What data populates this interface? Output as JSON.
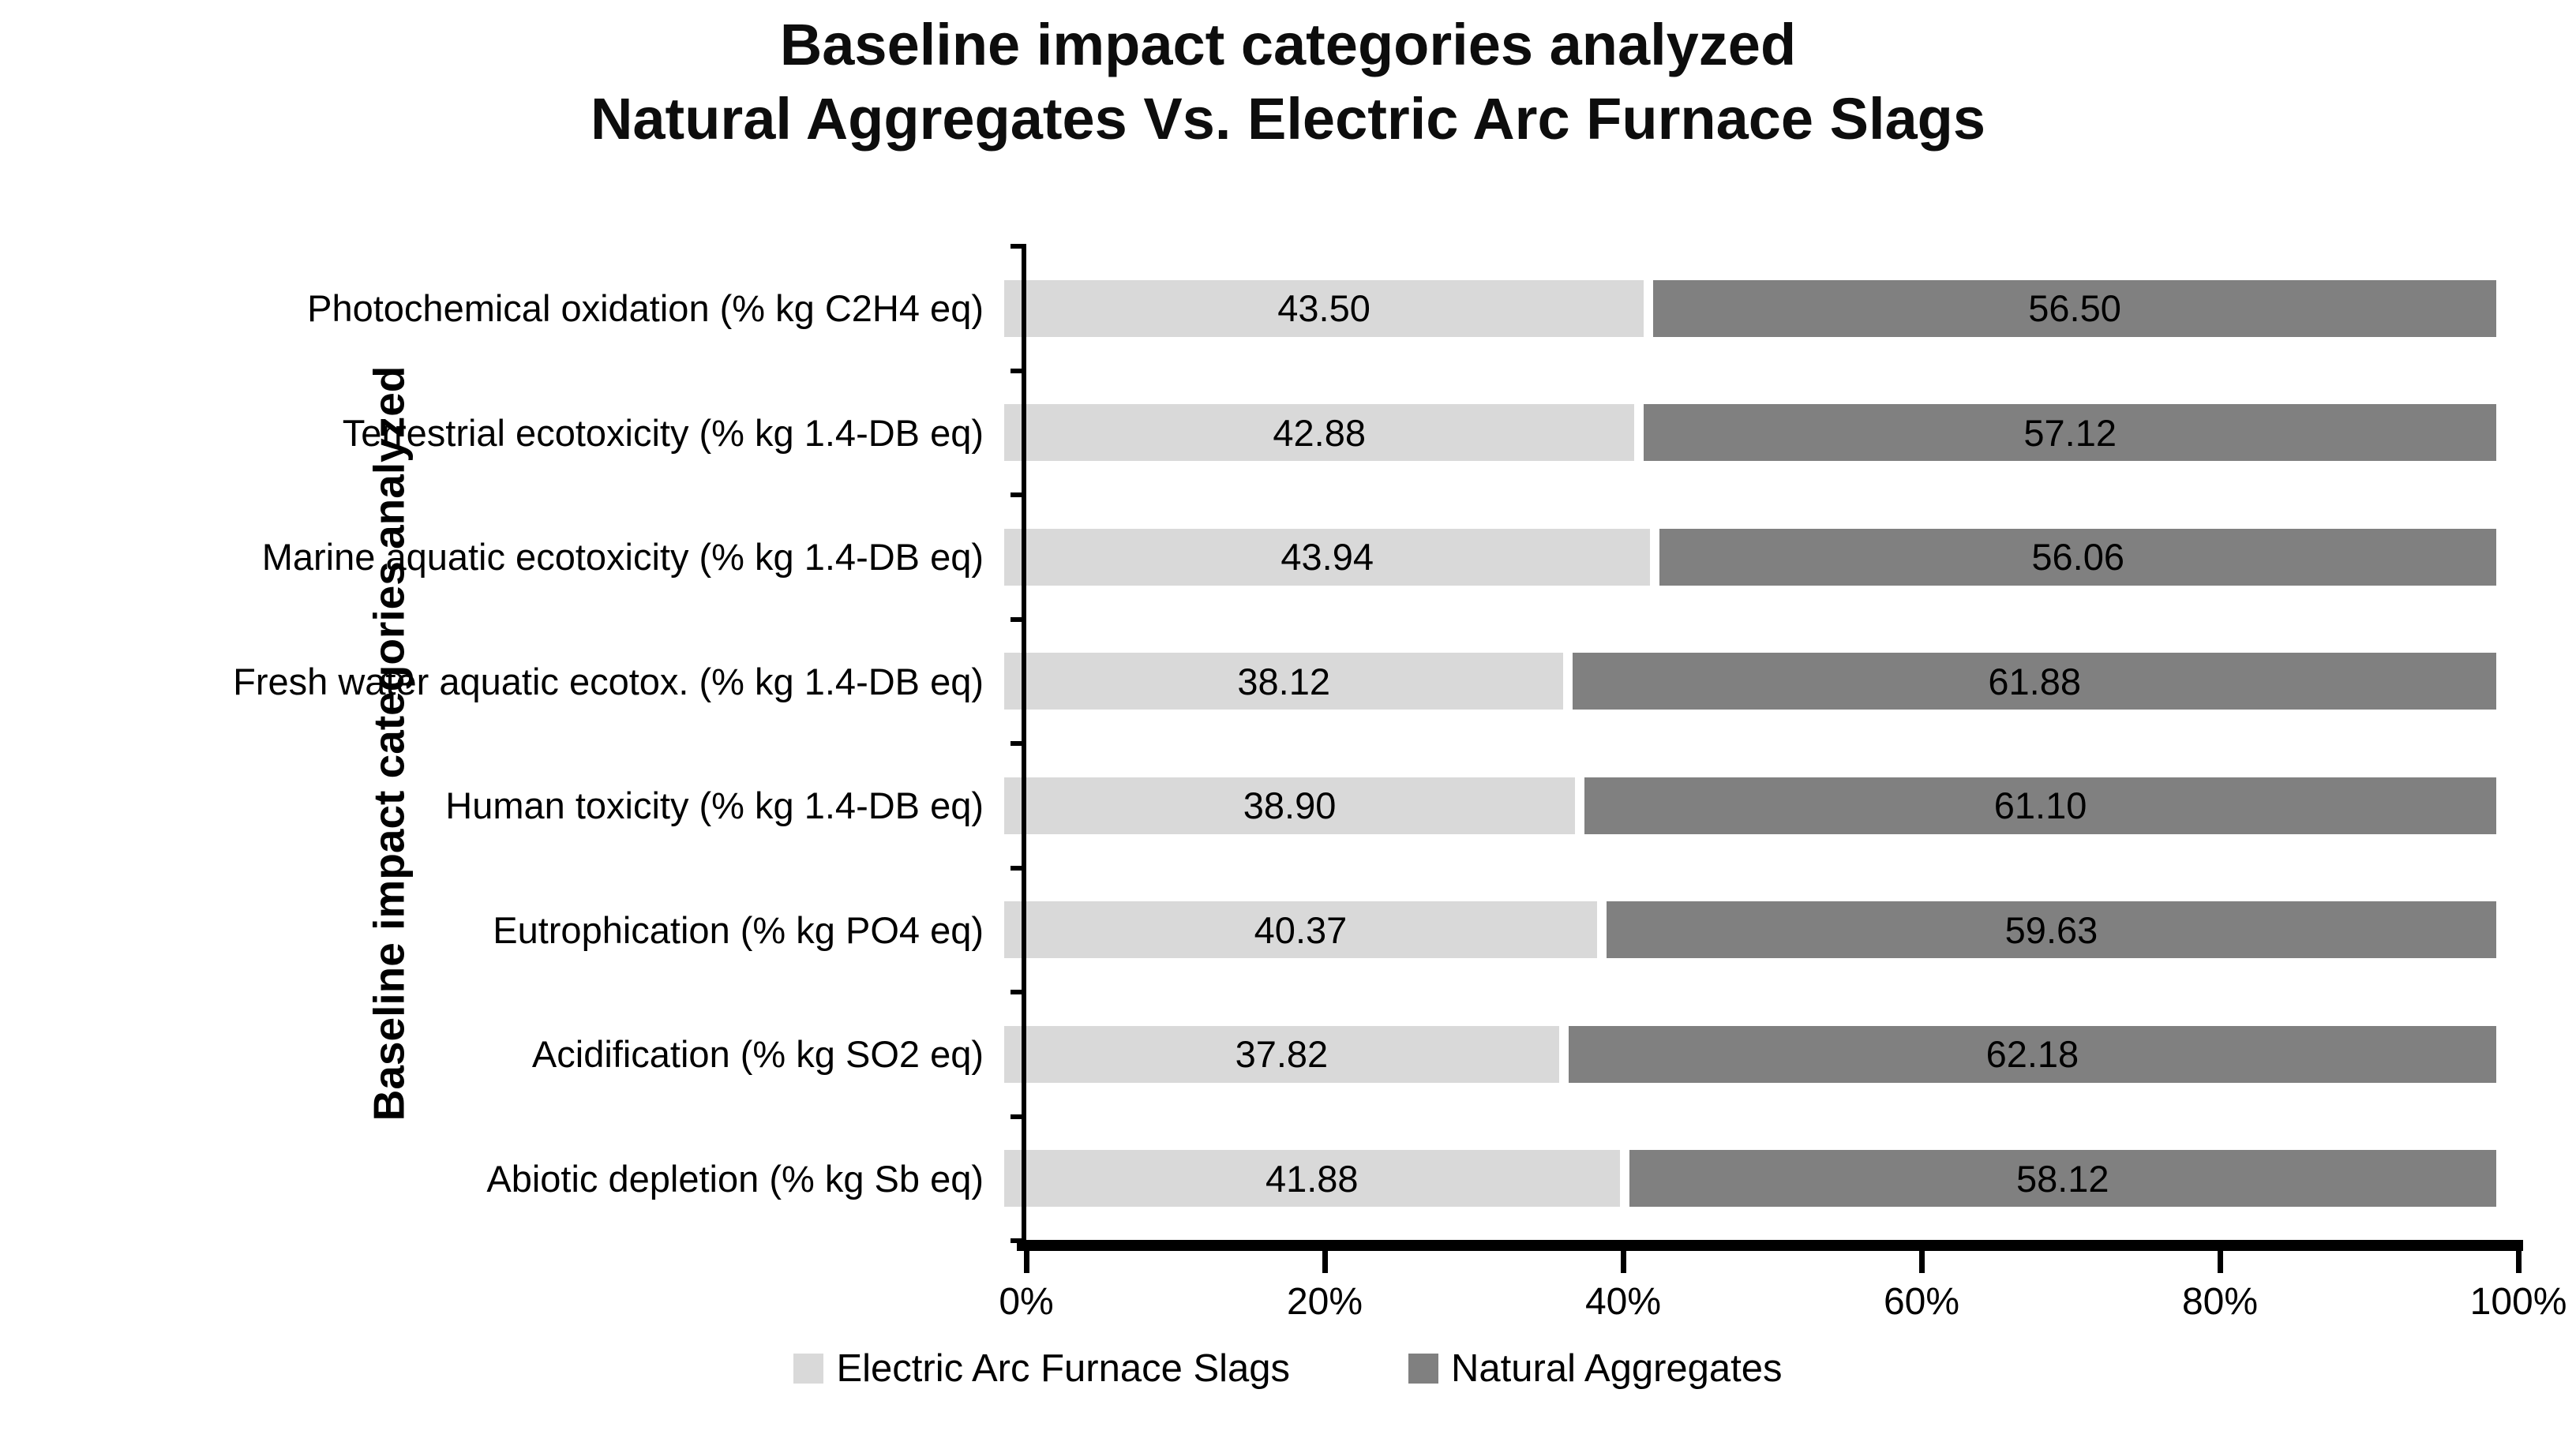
{
  "title": {
    "line1": "Baseline impact categories analyzed",
    "line2": "Natural Aggregates Vs. Electric Arc Furnace Slags"
  },
  "y_axis_title": "Baseline impact categories analyzed",
  "chart_data": {
    "type": "bar",
    "orientation": "horizontal",
    "stacked": true,
    "title": "Baseline impact categories analyzed Natural Aggregates Vs. Electric Arc Furnace Slags",
    "ylabel": "Baseline impact categories analyzed",
    "xlabel": "",
    "xlim": [
      0,
      100
    ],
    "x_tick_labels": [
      "0%",
      "20%",
      "40%",
      "60%",
      "80%",
      "100%"
    ],
    "grid": false,
    "legend_position": "bottom",
    "value_labels_decimals": 2,
    "categories": [
      "Photochemical oxidation (% kg C2H4 eq)",
      "Terrestrial ecotoxicity (% kg 1.4-DB eq)",
      "Marine aquatic ecotoxicity (% kg 1.4-DB eq)",
      "Fresh water aquatic ecotox. (% kg 1.4-DB eq)",
      "Human toxicity (% kg 1.4-DB eq)",
      "Eutrophication (% kg PO4 eq)",
      "Acidification (% kg SO2 eq)",
      "Abiotic depletion (% kg Sb eq)"
    ],
    "series": [
      {
        "name": "Electric Arc Furnace Slags",
        "color": "#d9d9d9",
        "values": [
          43.5,
          42.88,
          43.94,
          38.12,
          38.9,
          40.37,
          37.82,
          41.88
        ]
      },
      {
        "name": "Natural Aggregates",
        "color": "#808080",
        "values": [
          56.5,
          57.12,
          56.06,
          61.88,
          61.1,
          59.63,
          62.18,
          58.12
        ]
      }
    ]
  }
}
